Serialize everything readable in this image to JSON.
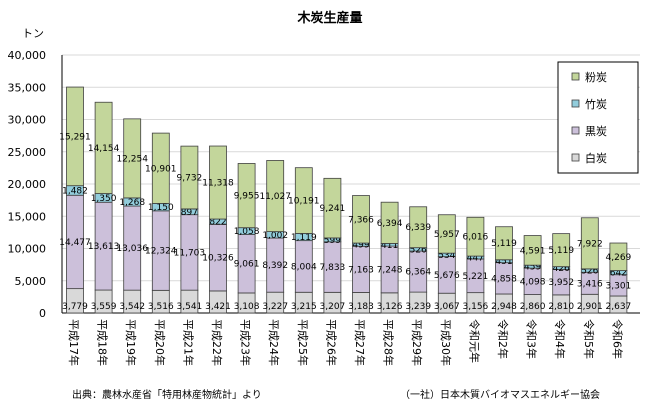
{
  "chart_data": {
    "type": "bar",
    "stacked": true,
    "title": "木炭生産量",
    "ylabel": "トン",
    "ylim": [
      0,
      40000
    ],
    "yticks": [
      "0",
      "5,000",
      "10,000",
      "15,000",
      "20,000",
      "25,000",
      "30,000",
      "35,000",
      "40,000"
    ],
    "categories": [
      "平成17年",
      "平成18年",
      "平成19年",
      "平成20年",
      "平成21年",
      "平成22年",
      "平成23年",
      "平成24年",
      "平成25年",
      "平成26年",
      "平成27年",
      "平成28年",
      "平成29年",
      "平成30年",
      "令和元年",
      "令和2年",
      "令和3年",
      "令和4年",
      "令和5年",
      "令和6年"
    ],
    "series": [
      {
        "name": "白炭",
        "color": "#d9d9d9",
        "values": [
          3779,
          3559,
          3542,
          3516,
          3541,
          3421,
          3108,
          3227,
          3215,
          3207,
          3183,
          3126,
          3239,
          3067,
          3156,
          2948,
          2860,
          2810,
          2901,
          2637
        ]
      },
      {
        "name": "黒炭",
        "color": "#ccc0da",
        "values": [
          14477,
          13613,
          13036,
          12324,
          11703,
          10326,
          9061,
          8392,
          8004,
          7833,
          7163,
          7248,
          6364,
          5676,
          5221,
          4858,
          4098,
          3952,
          3416,
          3301
        ]
      },
      {
        "name": "竹炭",
        "color": "#92cddc",
        "values": [
          1482,
          1350,
          1268,
          1150,
          897,
          822,
          1058,
          1002,
          1119,
          599,
          499,
          411,
          526,
          534,
          447,
          451,
          459,
          426,
          526,
          642
        ]
      },
      {
        "name": "粉炭",
        "color": "#c3d69b",
        "values": [
          15291,
          14154,
          12254,
          10901,
          9732,
          11318,
          9955,
          11027,
          10191,
          9241,
          7366,
          6394,
          6339,
          5957,
          6016,
          5119,
          4591,
          5119,
          7922,
          4269
        ]
      }
    ],
    "legend_position": "top-right",
    "grid": true
  },
  "footer": {
    "source": "出典：農林水産省「特用林産物統計」より",
    "credit": "（一社）日本木質バイオマスエネルギー協会"
  }
}
